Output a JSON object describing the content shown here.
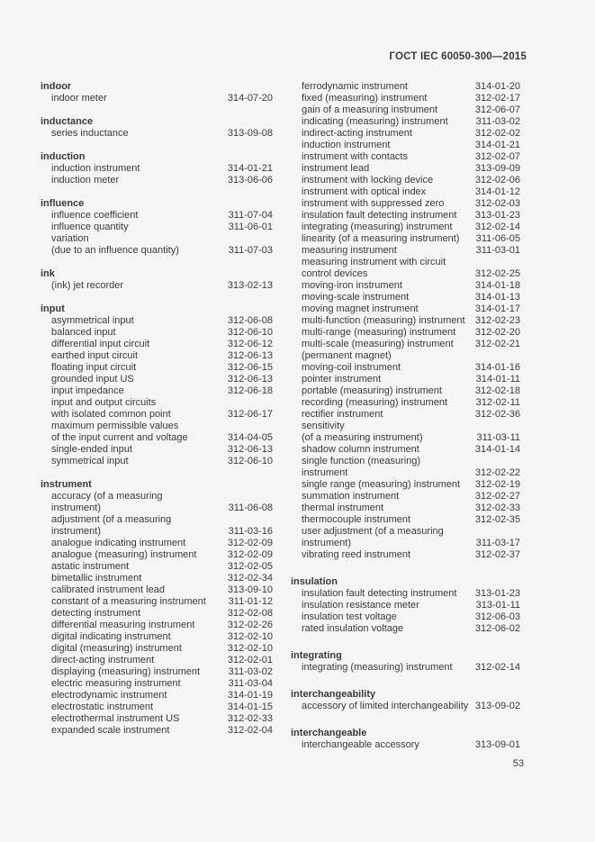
{
  "page": {
    "header_title": "ГОСТ IEC 60050-300—2015",
    "page_number": "53",
    "background_color": "#f5f5f4",
    "text_color": "#3a3a3a"
  },
  "columns": [
    {
      "sections": [
        {
          "heading": "indoor",
          "entries": [
            {
              "lines": [
                "indoor meter"
              ],
              "code": "314-07-20"
            }
          ]
        },
        {
          "heading": "inductance",
          "entries": [
            {
              "lines": [
                "series inductance"
              ],
              "code": "313-09-08"
            }
          ]
        },
        {
          "heading": "induction",
          "entries": [
            {
              "lines": [
                "induction instrument"
              ],
              "code": "314-01-21"
            },
            {
              "lines": [
                "induction meter"
              ],
              "code": "313-06-06"
            }
          ]
        },
        {
          "heading": "influence",
          "entries": [
            {
              "lines": [
                "influence coefficient"
              ],
              "code": "311-07-04"
            },
            {
              "lines": [
                "influence quantity"
              ],
              "code": "311-06-01"
            },
            {
              "lines": [
                "variation",
                "(due to an influence quantity)"
              ],
              "code": "311-07-03"
            }
          ]
        },
        {
          "heading": "ink",
          "entries": [
            {
              "lines": [
                "(ink) jet recorder"
              ],
              "code": "313-02-13"
            }
          ]
        },
        {
          "heading": "input",
          "entries": [
            {
              "lines": [
                "asymmetrical input"
              ],
              "code": "312-06-08"
            },
            {
              "lines": [
                "balanced input"
              ],
              "code": "312-06-10"
            },
            {
              "lines": [
                "differential input circuit"
              ],
              "code": "312-06-12"
            },
            {
              "lines": [
                "earthed input circuit"
              ],
              "code": "312-06-13"
            },
            {
              "lines": [
                "floating input circuit"
              ],
              "code": "312-06-15"
            },
            {
              "lines": [
                "grounded input US"
              ],
              "code": "312-06-13"
            },
            {
              "lines": [
                "input impedance"
              ],
              "code": "312-06-18"
            },
            {
              "lines": [
                "input and output circuits",
                "with isolated common point"
              ],
              "code": "312-06-17"
            },
            {
              "lines": [
                "maximum permissible values",
                "of the input current and voltage"
              ],
              "code": "314-04-05"
            },
            {
              "lines": [
                "single-ended input"
              ],
              "code": "312-06-13"
            },
            {
              "lines": [
                "symmetrical input"
              ],
              "code": "312-06-10"
            }
          ]
        },
        {
          "heading": "instrument",
          "entries": [
            {
              "lines": [
                "accuracy (of a measuring",
                "instrument)"
              ],
              "code": "311-06-08"
            },
            {
              "lines": [
                "adjustment (of a measuring",
                "instrument)"
              ],
              "code": "311-03-16"
            },
            {
              "lines": [
                "analogue indicating instrument"
              ],
              "code": "312-02-09"
            },
            {
              "lines": [
                "analogue (measuring) instrument"
              ],
              "code": "312-02-09"
            },
            {
              "lines": [
                "astatic instrument"
              ],
              "code": "312-02-05"
            },
            {
              "lines": [
                "bimetallic instrument"
              ],
              "code": "312-02-34"
            },
            {
              "lines": [
                "calibrated instrument lead"
              ],
              "code": "313-09-10"
            },
            {
              "lines": [
                "constant of a measuring instrument"
              ],
              "code": "311-01-12"
            },
            {
              "lines": [
                "detecting instrument"
              ],
              "code": "312-02-08"
            },
            {
              "lines": [
                "differential measuring instrument"
              ],
              "code": "312-02-26"
            },
            {
              "lines": [
                "digital indicating instrument"
              ],
              "code": "312-02-10"
            },
            {
              "lines": [
                "digital (measuring) instrument"
              ],
              "code": "312-02-10"
            },
            {
              "lines": [
                "direct-acting instrument"
              ],
              "code": "312-02-01"
            },
            {
              "lines": [
                "displaying (measuring) instrument"
              ],
              "code": "311-03-02"
            },
            {
              "lines": [
                "electric measuring instrument"
              ],
              "code": "311-03-04"
            },
            {
              "lines": [
                "electrodynamic instrument"
              ],
              "code": "314-01-19"
            },
            {
              "lines": [
                "electrostatic instrument"
              ],
              "code": "314-01-15"
            },
            {
              "lines": [
                "electrothermal instrument US"
              ],
              "code": "312-02-33"
            },
            {
              "lines": [
                "expanded scale instrument"
              ],
              "code": "312-02-04"
            }
          ]
        }
      ]
    },
    {
      "sections": [
        {
          "heading": null,
          "entries": [
            {
              "lines": [
                "ferrodynamic instrument"
              ],
              "code": "314-01-20"
            },
            {
              "lines": [
                "fixed (measuring) instrument"
              ],
              "code": "312-02-17"
            },
            {
              "lines": [
                "gain of a measuring instrument"
              ],
              "code": "312-06-07"
            },
            {
              "lines": [
                "indicating (measuring) instrument"
              ],
              "code": "311-03-02"
            },
            {
              "lines": [
                "indirect-acting instrument"
              ],
              "code": "312-02-02"
            },
            {
              "lines": [
                "induction instrument"
              ],
              "code": "314-01-21"
            },
            {
              "lines": [
                "instrument with contacts"
              ],
              "code": "312-02-07"
            },
            {
              "lines": [
                "instrument lead"
              ],
              "code": "313-09-09"
            },
            {
              "lines": [
                "instrument with locking device"
              ],
              "code": "312-02-06"
            },
            {
              "lines": [
                "instrument with optical index"
              ],
              "code": "314-01-12"
            },
            {
              "lines": [
                "instrument with suppressed zero"
              ],
              "code": "312-02-03"
            },
            {
              "lines": [
                "insulation fault detecting instrument"
              ],
              "code": "313-01-23"
            },
            {
              "lines": [
                "integrating (measuring) instrument"
              ],
              "code": "312-02-14"
            },
            {
              "lines": [
                "linearity (of a measuring instrument)"
              ],
              "code": "311-06-05"
            },
            {
              "lines": [
                "measuring instrument"
              ],
              "code": "311-03-01"
            },
            {
              "lines": [
                "measuring instrument with circuit",
                "control devices"
              ],
              "code": "312-02-25"
            },
            {
              "lines": [
                "moving-iron instrument"
              ],
              "code": "314-01-18"
            },
            {
              "lines": [
                "moving-scale instrument"
              ],
              "code": "314-01-13"
            },
            {
              "lines": [
                "moving magnet instrument"
              ],
              "code": "314-01-17"
            },
            {
              "lines": [
                "multi-function (measuring) instrument"
              ],
              "code": "312-02-23"
            },
            {
              "lines": [
                "multi-range (measuring) instrument"
              ],
              "code": "312-02-20"
            },
            {
              "lines": [
                "multi-scale (measuring) instrument"
              ],
              "code": "312-02-21"
            },
            {
              "lines": [
                "(permanent magnet)",
                "moving-coil instrument"
              ],
              "code": "314-01-16"
            },
            {
              "lines": [
                "pointer instrument"
              ],
              "code": "314-01-11"
            },
            {
              "lines": [
                "portable (measuring) instrument"
              ],
              "code": "312-02-18"
            },
            {
              "lines": [
                "recording (measuring) instrument"
              ],
              "code": "312-02-11"
            },
            {
              "lines": [
                "rectifier instrument"
              ],
              "code": "312-02-36"
            },
            {
              "lines": [
                "sensitivity",
                "(of a measuring instrument)"
              ],
              "code": "311-03-11"
            },
            {
              "lines": [
                "shadow column instrument"
              ],
              "code": "314-01-14"
            },
            {
              "lines": [
                "single function (measuring)",
                "instrument"
              ],
              "code": "312-02-22"
            },
            {
              "lines": [
                "single range (measuring) instrument"
              ],
              "code": "312-02-19"
            },
            {
              "lines": [
                "summation instrument"
              ],
              "code": "312-02-27"
            },
            {
              "lines": [
                "thermal instrument"
              ],
              "code": "312-02-33"
            },
            {
              "lines": [
                "thermocouple instrument"
              ],
              "code": "312-02-35"
            },
            {
              "lines": [
                "user adjustment (of a measuring",
                "instrument)"
              ],
              "code": "311-03-17"
            },
            {
              "lines": [
                "vibrating reed instrument"
              ],
              "code": "312-02-37"
            }
          ]
        },
        {
          "heading": "insulation",
          "entries": [
            {
              "lines": [
                "insulation fault detecting instrument"
              ],
              "code": "313-01-23"
            },
            {
              "lines": [
                "insulation resistance meter"
              ],
              "code": "313-01-11"
            },
            {
              "lines": [
                "insulation test voltage"
              ],
              "code": "312-06-03"
            },
            {
              "lines": [
                "rated insulation voltage"
              ],
              "code": "312-06-02"
            }
          ]
        },
        {
          "heading": "integrating",
          "entries": [
            {
              "lines": [
                "integrating (measuring) instrument"
              ],
              "code": "312-02-14"
            }
          ]
        },
        {
          "heading": "interchangeability",
          "entries": [
            {
              "lines": [
                "accessory of limited interchangeability"
              ],
              "code": "313-09-02"
            }
          ]
        },
        {
          "heading": "interchangeable",
          "entries": [
            {
              "lines": [
                "interchangeable accessory"
              ],
              "code": "313-09-01"
            }
          ]
        }
      ]
    }
  ]
}
